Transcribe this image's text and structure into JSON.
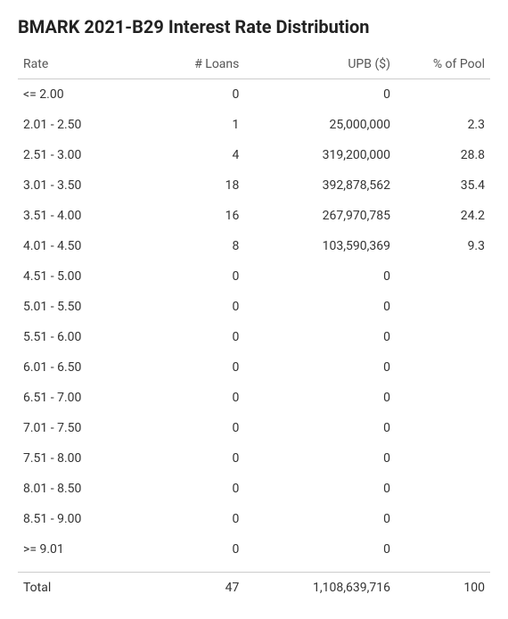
{
  "title": "BMARK 2021-B29 Interest Rate Distribution",
  "table": {
    "columns": [
      {
        "label": "Rate",
        "align": "left",
        "width_pct": 28
      },
      {
        "label": "# Loans",
        "align": "right",
        "width_pct": 20
      },
      {
        "label": "UPB ($)",
        "align": "right",
        "width_pct": 32
      },
      {
        "label": "% of Pool",
        "align": "right",
        "width_pct": 20
      }
    ],
    "rows": [
      {
        "rate": "<= 2.00",
        "loans": "0",
        "upb": "0",
        "pct": ""
      },
      {
        "rate": "2.01 - 2.50",
        "loans": "1",
        "upb": "25,000,000",
        "pct": "2.3"
      },
      {
        "rate": "2.51 - 3.00",
        "loans": "4",
        "upb": "319,200,000",
        "pct": "28.8"
      },
      {
        "rate": "3.01 - 3.50",
        "loans": "18",
        "upb": "392,878,562",
        "pct": "35.4"
      },
      {
        "rate": "3.51 - 4.00",
        "loans": "16",
        "upb": "267,970,785",
        "pct": "24.2"
      },
      {
        "rate": "4.01 - 4.50",
        "loans": "8",
        "upb": "103,590,369",
        "pct": "9.3"
      },
      {
        "rate": "4.51 - 5.00",
        "loans": "0",
        "upb": "0",
        "pct": ""
      },
      {
        "rate": "5.01 - 5.50",
        "loans": "0",
        "upb": "0",
        "pct": ""
      },
      {
        "rate": "5.51 - 6.00",
        "loans": "0",
        "upb": "0",
        "pct": ""
      },
      {
        "rate": "6.01 - 6.50",
        "loans": "0",
        "upb": "0",
        "pct": ""
      },
      {
        "rate": "6.51 - 7.00",
        "loans": "0",
        "upb": "0",
        "pct": ""
      },
      {
        "rate": "7.01 - 7.50",
        "loans": "0",
        "upb": "0",
        "pct": ""
      },
      {
        "rate": "7.51 - 8.00",
        "loans": "0",
        "upb": "0",
        "pct": ""
      },
      {
        "rate": "8.01 - 8.50",
        "loans": "0",
        "upb": "0",
        "pct": ""
      },
      {
        "rate": "8.51 - 9.00",
        "loans": "0",
        "upb": "0",
        "pct": ""
      },
      {
        "rate": ">= 9.01",
        "loans": "0",
        "upb": "0",
        "pct": ""
      }
    ],
    "total": {
      "label": "Total",
      "loans": "47",
      "upb": "1,108,639,716",
      "pct": "100"
    },
    "header_border_color": "#cccccc",
    "text_color": "#333333",
    "header_text_color": "#555555",
    "background_color": "#ffffff",
    "font_size": 14,
    "title_font_size": 20
  }
}
